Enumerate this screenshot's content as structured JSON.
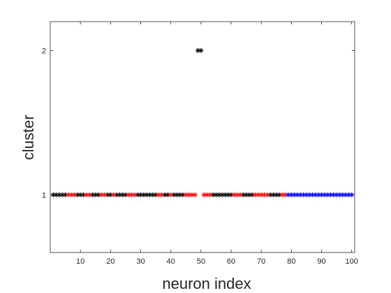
{
  "chart_data": {
    "type": "scatter",
    "title": "",
    "xlabel": "neuron index",
    "ylabel": "cluster",
    "xlim": [
      0,
      101
    ],
    "ylim": [
      0.6,
      2.2
    ],
    "xticks": [
      10,
      20,
      30,
      40,
      50,
      60,
      70,
      80,
      90,
      100
    ],
    "yticks": [
      1,
      2
    ],
    "grid": false,
    "legend": "none",
    "marker": "asterisk",
    "colors": {
      "black": "#000000",
      "red": "#ff0000",
      "blue": "#0000ff"
    },
    "series": [
      {
        "color": "black",
        "points": [
          [
            1,
            1
          ],
          [
            2,
            1
          ],
          [
            3,
            1
          ],
          [
            4,
            1
          ],
          [
            5,
            1
          ],
          [
            9,
            1
          ],
          [
            10,
            1
          ],
          [
            11,
            1
          ],
          [
            14,
            1
          ],
          [
            15,
            1
          ],
          [
            16,
            1
          ],
          [
            19,
            1
          ],
          [
            20,
            1
          ],
          [
            22,
            1
          ],
          [
            23,
            1
          ],
          [
            24,
            1
          ],
          [
            25,
            1
          ],
          [
            29,
            1
          ],
          [
            30,
            1
          ],
          [
            31,
            1
          ],
          [
            32,
            1
          ],
          [
            33,
            1
          ],
          [
            34,
            1
          ],
          [
            35,
            1
          ],
          [
            38,
            1
          ],
          [
            39,
            1
          ],
          [
            41,
            1
          ],
          [
            42,
            1
          ],
          [
            43,
            1
          ],
          [
            44,
            1
          ],
          [
            49,
            2
          ],
          [
            50,
            2
          ],
          [
            54,
            1
          ],
          [
            55,
            1
          ],
          [
            56,
            1
          ],
          [
            57,
            1
          ],
          [
            58,
            1
          ],
          [
            59,
            1
          ],
          [
            60,
            1
          ],
          [
            64,
            1
          ],
          [
            65,
            1
          ],
          [
            66,
            1
          ],
          [
            67,
            1
          ],
          [
            73,
            1
          ],
          [
            74,
            1
          ],
          [
            75,
            1
          ],
          [
            76,
            1
          ]
        ]
      },
      {
        "color": "red",
        "points": [
          [
            6,
            1
          ],
          [
            7,
            1
          ],
          [
            8,
            1
          ],
          [
            12,
            1
          ],
          [
            13,
            1
          ],
          [
            17,
            1
          ],
          [
            18,
            1
          ],
          [
            21,
            1
          ],
          [
            26,
            1
          ],
          [
            27,
            1
          ],
          [
            28,
            1
          ],
          [
            36,
            1
          ],
          [
            37,
            1
          ],
          [
            40,
            1
          ],
          [
            45,
            1
          ],
          [
            46,
            1
          ],
          [
            47,
            1
          ],
          [
            48,
            1
          ],
          [
            51,
            1
          ],
          [
            52,
            1
          ],
          [
            53,
            1
          ],
          [
            61,
            1
          ],
          [
            62,
            1
          ],
          [
            63,
            1
          ],
          [
            68,
            1
          ],
          [
            69,
            1
          ],
          [
            70,
            1
          ],
          [
            71,
            1
          ],
          [
            72,
            1
          ],
          [
            77,
            1
          ],
          [
            78,
            1
          ]
        ]
      },
      {
        "color": "blue",
        "points": [
          [
            79,
            1
          ],
          [
            80,
            1
          ],
          [
            81,
            1
          ],
          [
            82,
            1
          ],
          [
            83,
            1
          ],
          [
            84,
            1
          ],
          [
            85,
            1
          ],
          [
            86,
            1
          ],
          [
            87,
            1
          ],
          [
            88,
            1
          ],
          [
            89,
            1
          ],
          [
            90,
            1
          ],
          [
            91,
            1
          ],
          [
            92,
            1
          ],
          [
            93,
            1
          ],
          [
            94,
            1
          ],
          [
            95,
            1
          ],
          [
            96,
            1
          ],
          [
            97,
            1
          ],
          [
            98,
            1
          ],
          [
            99,
            1
          ],
          [
            100,
            1
          ]
        ]
      }
    ]
  }
}
